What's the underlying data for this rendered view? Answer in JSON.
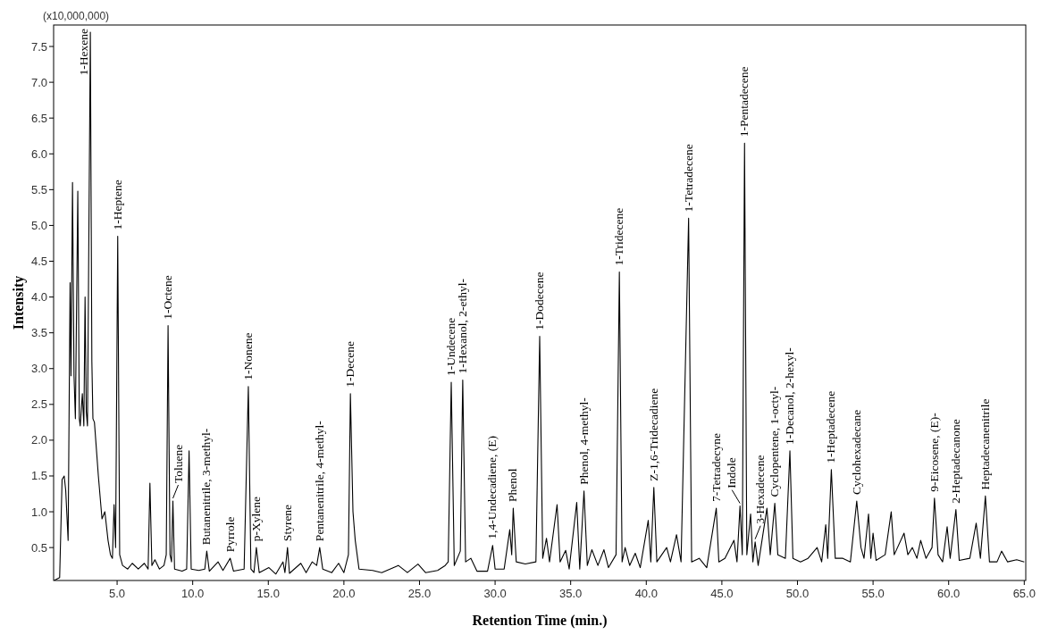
{
  "chart_data": {
    "type": "line",
    "xlabel": "Retention Time (min.)",
    "ylabel": "Intensity",
    "annotations": [
      "(x10,000,000)",
      {
        "text": "1-Hexene",
        "x": 3.23,
        "y": 7.7
      },
      {
        "text": "1-Heptene",
        "x": 5.04,
        "y": 4.85
      },
      {
        "text": "1-Octene",
        "x": 8.37,
        "y": 3.6
      },
      {
        "text": "Toluene",
        "x": 8.69,
        "y": 1.15
      },
      {
        "text": "Butanenitrile, 3-methyl-",
        "x": 10.93,
        "y": 0.45
      },
      {
        "text": "Pyrrole",
        "x": 12.48,
        "y": 0.35
      },
      {
        "text": "1-Nonene",
        "x": 13.68,
        "y": 2.75
      },
      {
        "text": "p-Xylene",
        "x": 14.21,
        "y": 0.5
      },
      {
        "text": "Styrene",
        "x": 16.27,
        "y": 0.5
      },
      {
        "text": "Pentanenitrile, 4-methyl-",
        "x": 18.4,
        "y": 0.5
      },
      {
        "text": "1-Decene",
        "x": 20.43,
        "y": 2.65
      },
      {
        "text": "1-Undecene",
        "x": 27.1,
        "y": 2.81
      },
      {
        "text": "1-Hexanol, 2-ethyl-",
        "x": 27.86,
        "y": 2.84
      },
      {
        "text": "1,4-Undecadiene, (E)",
        "x": 29.84,
        "y": 0.53
      },
      {
        "text": "Phenol",
        "x": 31.2,
        "y": 1.05
      },
      {
        "text": "1-Dodecene",
        "x": 32.95,
        "y": 3.45
      },
      {
        "text": "Phenol, 4-methyl-",
        "x": 35.88,
        "y": 1.29
      },
      {
        "text": "1-Tridecene",
        "x": 38.22,
        "y": 4.35
      },
      {
        "text": "Z-1,6-Tridecadiene",
        "x": 40.5,
        "y": 1.34
      },
      {
        "text": "1-Tetradecene",
        "x": 42.8,
        "y": 5.1
      },
      {
        "text": "7-Tetradecyne",
        "x": 44.63,
        "y": 1.05
      },
      {
        "text": "Indole",
        "x": 46.2,
        "y": 1.08
      },
      {
        "text": "1-Pentadecene",
        "x": 46.5,
        "y": 6.15
      },
      {
        "text": "3-Hexadecene",
        "x": 47.2,
        "y": 0.58
      },
      {
        "text": "Cyclopentene, 1-octyl-",
        "x": 48.5,
        "y": 1.12
      },
      {
        "text": "1-Decanol, 2-hexyl-",
        "x": 49.5,
        "y": 1.85
      },
      {
        "text": "1-Heptadecene",
        "x": 52.24,
        "y": 1.59
      },
      {
        "text": "Cyclohexadecane",
        "x": 53.92,
        "y": 1.15
      },
      {
        "text": "9-Eicosene, (E)-",
        "x": 59.06,
        "y": 1.19
      },
      {
        "text": "2-Heptadecanone",
        "x": 60.48,
        "y": 1.03
      },
      {
        "text": "Heptadecanenitrile",
        "x": 62.43,
        "y": 1.22
      }
    ],
    "xlim": [
      0.8,
      65.1
    ],
    "ylim": [
      0.04,
      7.8
    ],
    "xticks": [
      {
        "value": 5,
        "label": "5.0"
      },
      {
        "value": 10,
        "label": "10.0"
      },
      {
        "value": 15,
        "label": "15.0"
      },
      {
        "value": 20,
        "label": "20.0"
      },
      {
        "value": 25,
        "label": "25.0"
      },
      {
        "value": 30,
        "label": "30.0"
      },
      {
        "value": 35,
        "label": "35.0"
      },
      {
        "value": 40,
        "label": "40.0"
      },
      {
        "value": 45,
        "label": "45.0"
      },
      {
        "value": 50,
        "label": "50.0"
      },
      {
        "value": 55,
        "label": "55.0"
      },
      {
        "value": 60,
        "label": "60.0"
      },
      {
        "value": 65,
        "label": "65.0"
      }
    ],
    "yticks": [
      0.5,
      {
        "value": 1,
        "label": "1.0"
      },
      1.5,
      {
        "value": 2,
        "label": "2.0"
      },
      2.5,
      {
        "value": 3,
        "label": "3.0"
      },
      3.5,
      {
        "value": 4,
        "label": "4.0"
      },
      4.5,
      {
        "value": 5,
        "label": "5.0"
      },
      5.5,
      {
        "value": 6,
        "label": "6.0"
      },
      6.5,
      {
        "value": 7,
        "label": "7.0"
      },
      7.5
    ],
    "grid": false,
    "marker": "none",
    "line_style": "solid",
    "series": [
      {
        "color": "#000000",
        "x": [
          0.83,
          1.2,
          1.36,
          1.5,
          1.6,
          1.76,
          1.89,
          1.95,
          2.05,
          2.15,
          2.24,
          2.4,
          2.5,
          2.56,
          2.7,
          2.8,
          2.88,
          2.96,
          3.04,
          3.23,
          3.33,
          3.4,
          3.5,
          3.76,
          4.0,
          4.19,
          4.4,
          4.56,
          4.69,
          4.8,
          4.9,
          5.04,
          5.17,
          5.36,
          5.7,
          6.0,
          6.4,
          6.8,
          7.05,
          7.17,
          7.3,
          7.5,
          7.8,
          8.1,
          8.25,
          8.37,
          8.5,
          8.6,
          8.69,
          8.8,
          9.3,
          9.6,
          9.76,
          9.9,
          10.4,
          10.8,
          10.93,
          11.1,
          11.68,
          12.0,
          12.48,
          12.7,
          13.4,
          13.68,
          13.85,
          14.05,
          14.21,
          14.4,
          15.04,
          15.5,
          15.97,
          16.1,
          16.27,
          16.4,
          17.15,
          17.5,
          17.9,
          18.2,
          18.4,
          18.6,
          19.2,
          19.65,
          20.0,
          20.3,
          20.43,
          20.6,
          20.75,
          21.0,
          21.9,
          22.5,
          23.6,
          24.2,
          24.9,
          25.4,
          26.2,
          26.7,
          26.9,
          27.1,
          27.3,
          27.7,
          27.86,
          28.05,
          28.4,
          28.8,
          29.5,
          29.84,
          30.0,
          30.6,
          30.97,
          31.1,
          31.2,
          31.4,
          32.0,
          32.7,
          32.95,
          33.15,
          33.4,
          33.6,
          34.1,
          34.3,
          34.67,
          34.9,
          35.4,
          35.6,
          35.88,
          36.1,
          36.4,
          36.8,
          37.2,
          37.5,
          38.0,
          38.22,
          38.4,
          38.6,
          38.9,
          39.27,
          39.6,
          40.13,
          40.3,
          40.5,
          40.7,
          41.35,
          41.6,
          42.0,
          42.3,
          42.8,
          43.0,
          43.5,
          44.0,
          44.63,
          44.8,
          45.2,
          45.8,
          46.0,
          46.2,
          46.35,
          46.5,
          46.65,
          46.9,
          47.05,
          47.2,
          47.4,
          47.98,
          48.2,
          48.5,
          48.7,
          49.2,
          49.5,
          49.7,
          50.2,
          50.7,
          51.3,
          51.6,
          51.87,
          52.0,
          52.24,
          52.5,
          53.0,
          53.5,
          53.92,
          54.2,
          54.4,
          54.7,
          54.85,
          55.0,
          55.2,
          55.8,
          56.2,
          56.4,
          57.05,
          57.3,
          57.6,
          57.9,
          58.15,
          58.5,
          58.9,
          59.06,
          59.3,
          59.6,
          59.9,
          60.1,
          60.48,
          60.7,
          61.4,
          61.82,
          62.1,
          62.43,
          62.7,
          63.2,
          63.5,
          63.9,
          64.5,
          65.0
        ],
        "values": [
          0.04,
          0.08,
          1.45,
          1.5,
          1.3,
          0.6,
          4.2,
          2.9,
          5.6,
          2.9,
          2.3,
          5.48,
          2.3,
          2.2,
          2.65,
          2.2,
          4.0,
          2.4,
          2.2,
          7.7,
          3.1,
          2.3,
          2.25,
          1.5,
          0.9,
          1.0,
          0.6,
          0.4,
          0.35,
          1.1,
          0.5,
          4.85,
          0.4,
          0.25,
          0.2,
          0.28,
          0.2,
          0.28,
          0.2,
          1.4,
          0.25,
          0.33,
          0.2,
          0.25,
          0.4,
          3.6,
          0.4,
          0.3,
          1.15,
          0.2,
          0.17,
          0.2,
          1.85,
          0.2,
          0.18,
          0.2,
          0.45,
          0.17,
          0.3,
          0.18,
          0.35,
          0.17,
          0.2,
          2.75,
          0.2,
          0.15,
          0.5,
          0.15,
          0.22,
          0.13,
          0.3,
          0.15,
          0.5,
          0.14,
          0.28,
          0.15,
          0.3,
          0.25,
          0.5,
          0.2,
          0.15,
          0.28,
          0.15,
          0.4,
          2.65,
          1.0,
          0.6,
          0.2,
          0.18,
          0.15,
          0.25,
          0.15,
          0.27,
          0.15,
          0.18,
          0.25,
          0.3,
          2.81,
          0.25,
          0.45,
          2.84,
          0.3,
          0.35,
          0.17,
          0.17,
          0.53,
          0.2,
          0.2,
          0.75,
          0.4,
          1.05,
          0.3,
          0.27,
          0.3,
          3.45,
          0.35,
          0.63,
          0.3,
          1.1,
          0.3,
          0.46,
          0.2,
          1.13,
          0.2,
          1.29,
          0.25,
          0.47,
          0.25,
          0.47,
          0.22,
          0.4,
          4.35,
          0.3,
          0.5,
          0.25,
          0.42,
          0.22,
          0.88,
          0.3,
          1.34,
          0.3,
          0.5,
          0.3,
          0.68,
          0.3,
          5.1,
          0.3,
          0.35,
          0.22,
          1.05,
          0.3,
          0.35,
          0.6,
          0.3,
          1.08,
          0.4,
          6.15,
          0.4,
          0.97,
          0.3,
          0.58,
          0.25,
          1.05,
          0.4,
          1.12,
          0.4,
          0.35,
          1.85,
          0.35,
          0.3,
          0.35,
          0.5,
          0.3,
          0.82,
          0.35,
          1.59,
          0.35,
          0.35,
          0.3,
          1.15,
          0.5,
          0.35,
          0.97,
          0.35,
          0.7,
          0.32,
          0.4,
          1.0,
          0.4,
          0.7,
          0.4,
          0.5,
          0.35,
          0.6,
          0.35,
          0.5,
          1.19,
          0.4,
          0.3,
          0.79,
          0.35,
          1.03,
          0.32,
          0.35,
          0.84,
          0.35,
          1.22,
          0.3,
          0.3,
          0.45,
          0.3,
          0.33,
          0.3
        ]
      }
    ]
  }
}
